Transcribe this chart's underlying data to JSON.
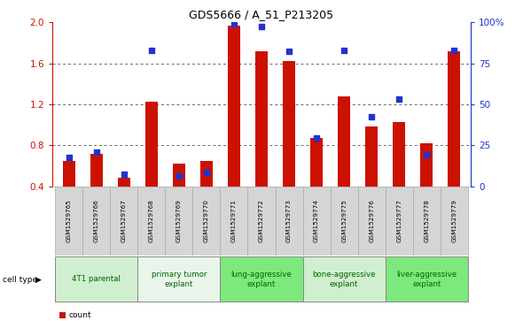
{
  "title": "GDS5666 / A_51_P213205",
  "samples": [
    "GSM1529765",
    "GSM1529766",
    "GSM1529767",
    "GSM1529768",
    "GSM1529769",
    "GSM1529770",
    "GSM1529771",
    "GSM1529772",
    "GSM1529773",
    "GSM1529774",
    "GSM1529775",
    "GSM1529776",
    "GSM1529777",
    "GSM1529778",
    "GSM1529779"
  ],
  "red_values": [
    0.65,
    0.72,
    0.48,
    1.23,
    0.62,
    0.65,
    1.97,
    1.72,
    1.62,
    0.87,
    1.28,
    0.98,
    1.03,
    0.82,
    1.72
  ],
  "blue_values": [
    0.68,
    0.73,
    0.52,
    1.73,
    0.5,
    0.53,
    1.99,
    1.96,
    1.72,
    0.87,
    1.73,
    1.08,
    1.25,
    0.71,
    1.73
  ],
  "ylim_left": [
    0.4,
    2.0
  ],
  "yticks_left": [
    0.4,
    0.8,
    1.2,
    1.6,
    2.0
  ],
  "ylim_right": [
    0,
    100
  ],
  "yticks_right": [
    0,
    25,
    50,
    75,
    100
  ],
  "yticklabels_right": [
    "0",
    "25",
    "50",
    "75",
    "100%"
  ],
  "groups": [
    {
      "label": "4T1 parental",
      "start": 0,
      "end": 3,
      "color": "#d0efd0"
    },
    {
      "label": "primary tumor\nexplant",
      "start": 3,
      "end": 6,
      "color": "#eaf5ea"
    },
    {
      "label": "lung-aggressive\nexplant",
      "start": 6,
      "end": 9,
      "color": "#7de87d"
    },
    {
      "label": "bone-aggressive\nexplant",
      "start": 9,
      "end": 12,
      "color": "#d0efd0"
    },
    {
      "label": "liver-aggressive\nexplant",
      "start": 12,
      "end": 15,
      "color": "#7de87d"
    }
  ],
  "bar_color": "#cc1100",
  "dot_color": "#2233cc",
  "left_axis_color": "#cc1100",
  "right_axis_color": "#2233cc",
  "bar_width": 0.45,
  "dot_size": 22
}
